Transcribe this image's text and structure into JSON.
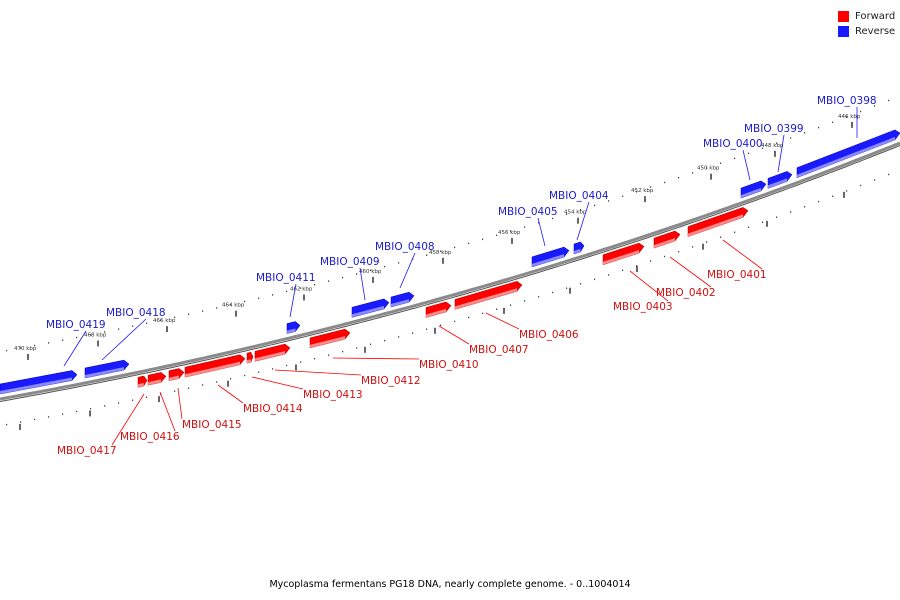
{
  "legend": {
    "forward": {
      "label": "Forward",
      "color": "#ff0000"
    },
    "reverse": {
      "label": "Reverse",
      "color": "#1a1aff"
    }
  },
  "caption": "Mycoplasma fermentans PG18 DNA, nearly complete genome. - 0..1004014",
  "ticks": [
    "446 kbp",
    "448 kbp",
    "450 kbp",
    "452 kbp",
    "454 kbp",
    "456 kbp",
    "458 kbp",
    "460 kbp",
    "462 kbp",
    "464 kbp",
    "466 kbp",
    "468 kbp",
    "470 kbp"
  ],
  "genes": [
    {
      "name": "MBIO_0398",
      "strand": "reverse"
    },
    {
      "name": "MBIO_0399",
      "strand": "reverse"
    },
    {
      "name": "MBIO_0400",
      "strand": "reverse"
    },
    {
      "name": "MBIO_0401",
      "strand": "forward"
    },
    {
      "name": "MBIO_0402",
      "strand": "forward"
    },
    {
      "name": "MBIO_0403",
      "strand": "forward"
    },
    {
      "name": "MBIO_0404",
      "strand": "reverse"
    },
    {
      "name": "MBIO_0405",
      "strand": "reverse"
    },
    {
      "name": "MBIO_0406",
      "strand": "forward"
    },
    {
      "name": "MBIO_0407",
      "strand": "forward"
    },
    {
      "name": "MBIO_0408",
      "strand": "reverse"
    },
    {
      "name": "MBIO_0409",
      "strand": "reverse"
    },
    {
      "name": "MBIO_0410",
      "strand": "forward"
    },
    {
      "name": "MBIO_0411",
      "strand": "reverse"
    },
    {
      "name": "MBIO_0412",
      "strand": "forward"
    },
    {
      "name": "MBIO_0413",
      "strand": "forward"
    },
    {
      "name": "MBIO_0414",
      "strand": "forward"
    },
    {
      "name": "MBIO_0415",
      "strand": "forward"
    },
    {
      "name": "MBIO_0416",
      "strand": "forward"
    },
    {
      "name": "MBIO_0417",
      "strand": "forward"
    },
    {
      "name": "MBIO_0418",
      "strand": "reverse"
    },
    {
      "name": "MBIO_0419",
      "strand": "reverse"
    }
  ]
}
